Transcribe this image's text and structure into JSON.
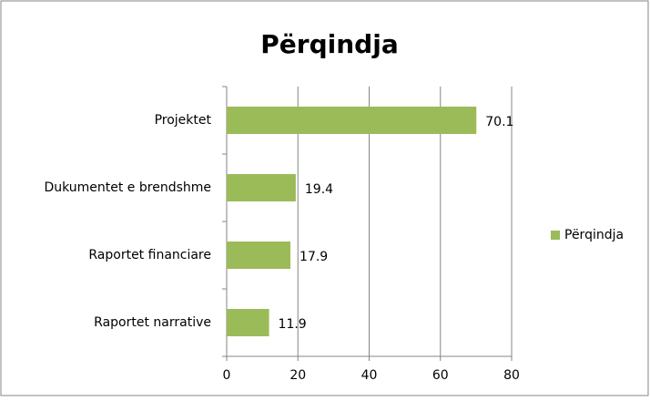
{
  "chart_data": {
    "type": "bar",
    "orientation": "horizontal",
    "title": "Përqindja",
    "categories": [
      "Projektet",
      "Dukumentet e brendshme",
      "Raportet financiare",
      "Raportet narrative"
    ],
    "series": [
      {
        "name": "Përqindja",
        "color": "#9bbb59",
        "values": [
          70.1,
          19.4,
          17.9,
          11.9
        ]
      }
    ],
    "xlim": [
      0,
      80
    ],
    "xticks": [
      0,
      20,
      40,
      60,
      80
    ],
    "grid": true,
    "legend": "right"
  }
}
